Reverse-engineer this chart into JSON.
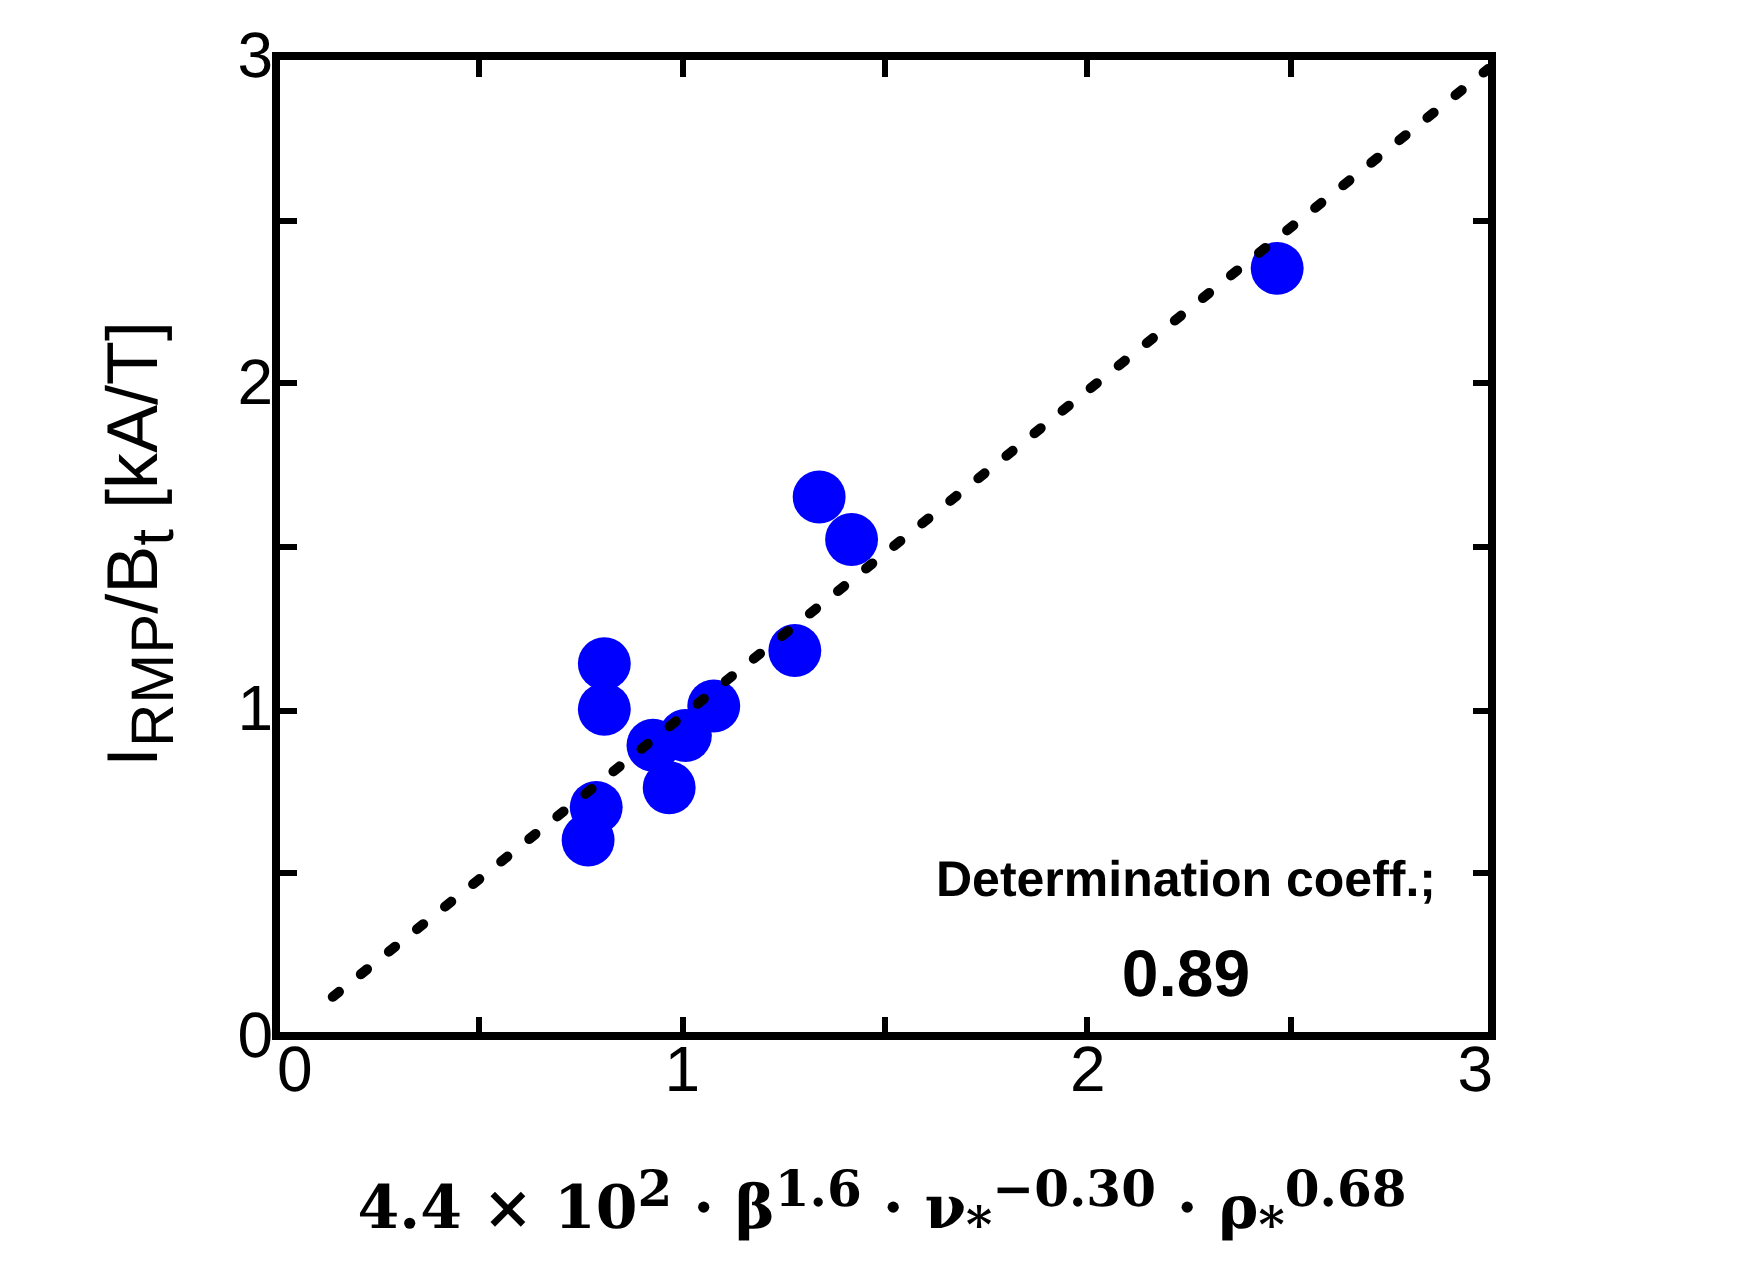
{
  "chart_data": {
    "type": "scatter",
    "xlabel": "4.4 × 10$^{2}$ · β$^{1.6}$ · ν$_{*}$$^{−0.30}$ · ρ$_{*}$$^{0.68}$",
    "ylabel": "I$_{RMP}$/B$_{t}$ [kA/T]",
    "xlim": [
      0,
      3
    ],
    "ylim": [
      0,
      3
    ],
    "xticks": [
      0,
      {
        "value": 0.5,
        "label": null
      },
      1,
      {
        "value": 1.5,
        "label": null
      },
      2,
      {
        "value": 2.5,
        "label": null
      },
      3
    ],
    "yticks": [
      0,
      {
        "value": 0.5,
        "label": null
      },
      1,
      {
        "value": 1.5,
        "label": null
      },
      2,
      {
        "value": 2.5,
        "label": null
      },
      3
    ],
    "grid": false,
    "series": [
      {
        "marker": "circle",
        "color": "#0000ff",
        "x": [
          2.47,
          1.34,
          1.42,
          1.28,
          0.81,
          0.81,
          1.08,
          1.01,
          0.93,
          0.97,
          0.79,
          0.77
        ],
        "values": [
          2.35,
          1.65,
          1.52,
          1.18,
          1.14,
          1.0,
          1.01,
          0.92,
          0.89,
          0.76,
          0.7,
          0.6
        ]
      },
      {
        "type": "line",
        "color": "#000000",
        "line_style": "dotted",
        "x": [
          0.14,
          2.99
        ],
        "values": [
          0.12,
          2.96
        ]
      }
    ],
    "annotations": [
      "Determination coeff.;",
      "0.89"
    ]
  }
}
